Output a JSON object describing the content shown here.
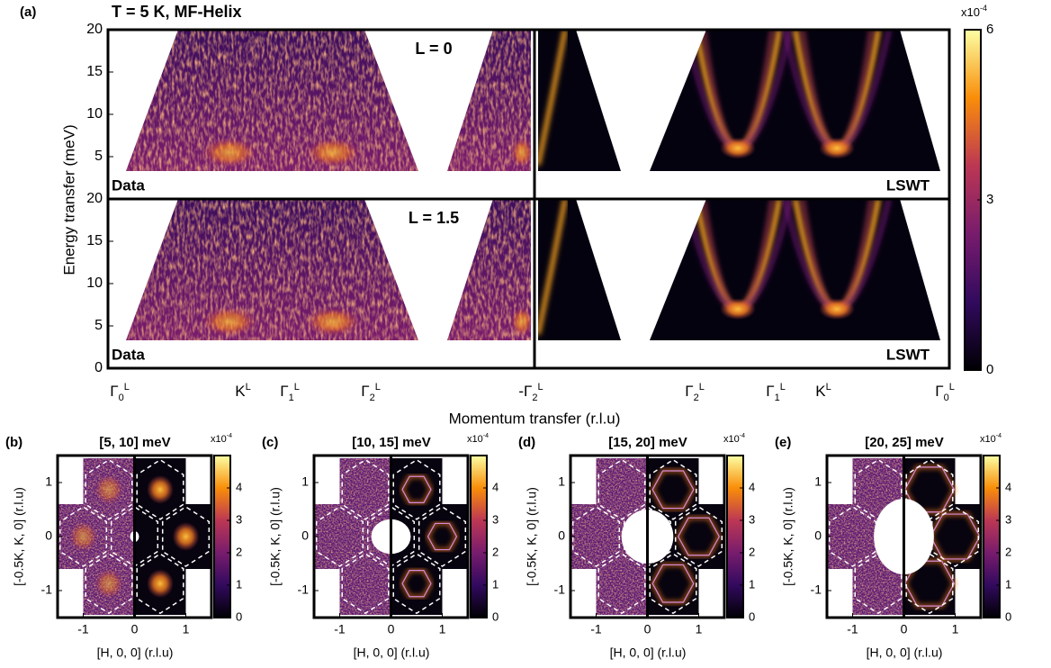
{
  "panel_a": {
    "label": "(a)",
    "title": "T = 5 K, MF-Helix",
    "ylabel": "Energy transfer (meV)",
    "xlabel": "Momentum transfer (r.l.u)",
    "ylim": [
      0,
      20
    ],
    "rows": [
      {
        "annotation": "L = 0",
        "yticks": [
          5,
          10,
          15,
          20
        ],
        "left_label": "Data",
        "right_label": "LSWT"
      },
      {
        "annotation": "L = 1.5",
        "yticks": [
          0,
          5,
          10,
          15,
          20
        ],
        "left_label": "Data",
        "right_label": "LSWT"
      }
    ],
    "xticks": [
      {
        "symbol": "Γ",
        "sub": "0",
        "sup": "L"
      },
      {
        "symbol": "K",
        "sup": "L"
      },
      {
        "symbol": "Γ",
        "sub": "1",
        "sup": "L"
      },
      {
        "symbol": "Γ",
        "sub": "2",
        "sup": "L"
      },
      {
        "symbol": "-Γ",
        "sub": "2",
        "sup": "L"
      },
      {
        "symbol": "Γ",
        "sub": "2",
        "sup": "L"
      },
      {
        "symbol": "Γ",
        "sub": "1",
        "sup": "L"
      },
      {
        "symbol": "K",
        "sup": "L"
      },
      {
        "symbol": "Γ",
        "sub": "0",
        "sup": "L"
      }
    ],
    "colorbar": {
      "multiplier": "x10",
      "exponent": "-4",
      "lim": [
        0,
        6
      ],
      "ticks": [
        0,
        3,
        6
      ]
    }
  },
  "slices": [
    {
      "label": "(b)",
      "title": "[5, 10] meV",
      "xlabel": "[H, 0, 0] (r.l.u)",
      "ylabel": "[-0.5K, K, 0] (r.l.u)",
      "xlim": [
        -1.5,
        1.5
      ],
      "xticks": [
        -1,
        0,
        1
      ],
      "ylim": [
        -1.5,
        1.5
      ],
      "yticks": [
        -1,
        0,
        1
      ],
      "colorbar": {
        "multiplier": "x10",
        "exponent": "-4",
        "lim": [
          0,
          5
        ],
        "ticks": [
          0,
          1,
          2,
          3,
          4
        ]
      }
    },
    {
      "label": "(c)",
      "title": "[10, 15] meV",
      "xlabel": "[H, 0, 0] (r.l.u)",
      "ylabel": "[-0.5K, K, 0] (r.l.u)",
      "xlim": [
        -1.5,
        1.5
      ],
      "xticks": [
        -1,
        0,
        1
      ],
      "ylim": [
        -1.5,
        1.5
      ],
      "yticks": [
        -1,
        0,
        1
      ],
      "colorbar": {
        "multiplier": "x10",
        "exponent": "-4",
        "lim": [
          0,
          5
        ],
        "ticks": [
          0,
          1,
          2,
          3,
          4
        ]
      }
    },
    {
      "label": "(d)",
      "title": "[15, 20] meV",
      "xlabel": "[H, 0, 0] (r.l.u)",
      "ylabel": "[-0.5K, K, 0] (r.l.u)",
      "xlim": [
        -1.5,
        1.5
      ],
      "xticks": [
        -1,
        0,
        1
      ],
      "ylim": [
        -1.5,
        1.5
      ],
      "yticks": [
        -1,
        0,
        1
      ],
      "colorbar": {
        "multiplier": "x10",
        "exponent": "-4",
        "lim": [
          0,
          5
        ],
        "ticks": [
          0,
          1,
          2,
          3,
          4
        ]
      }
    },
    {
      "label": "(e)",
      "title": "[20, 25] meV",
      "xlabel": "[H, 0, 0] (r.l.u)",
      "ylabel": "[-0.5K, K, 0] (r.l.u)",
      "xlim": [
        -1.5,
        1.5
      ],
      "xticks": [
        -1,
        0,
        1
      ],
      "ylim": [
        -1.5,
        1.5
      ],
      "yticks": [
        -1,
        0,
        1
      ],
      "colorbar": {
        "multiplier": "x10",
        "exponent": "-4",
        "lim": [
          0,
          5
        ],
        "ticks": [
          0,
          1,
          2,
          3,
          4
        ]
      }
    }
  ]
}
